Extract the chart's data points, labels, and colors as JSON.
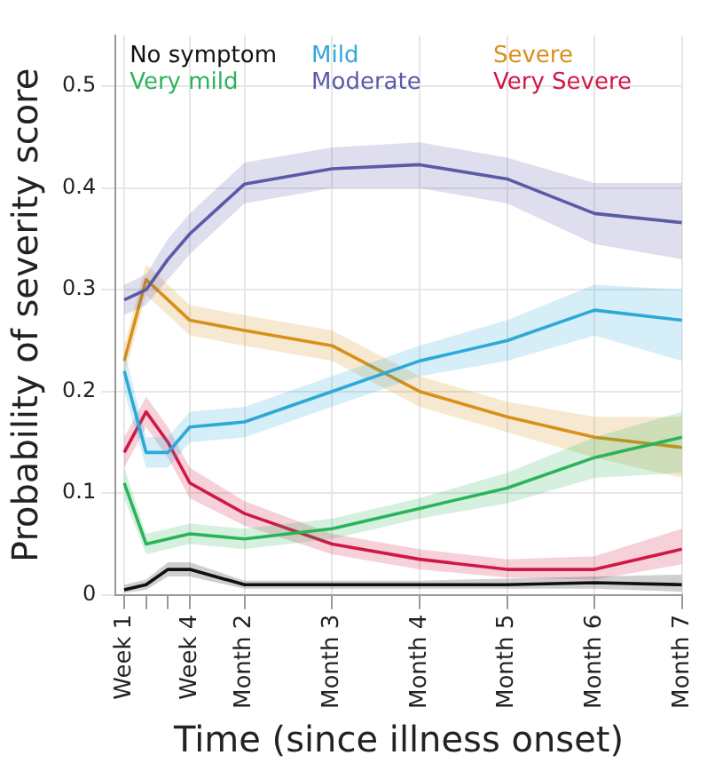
{
  "chart_data": {
    "type": "line",
    "xlabel": "Time (since illness onset)",
    "ylabel": "Probability of severity score",
    "categories": [
      "Week 1",
      null,
      null,
      "Week 4",
      "Month 2",
      "Month 3",
      "Month 4",
      "Month 5",
      "Month 6",
      "Month 7"
    ],
    "ylim": [
      0,
      0.55
    ],
    "yticks": [
      0,
      0.1,
      0.2,
      0.3,
      0.4,
      0.5
    ],
    "grid": true,
    "legend": "top",
    "marker": "none",
    "line_style": "solid",
    "series": [
      {
        "name": "No symptom",
        "color": "#111111",
        "values": [
          0.005,
          0.01,
          0.025,
          0.025,
          0.01,
          0.01,
          0.01,
          0.01,
          0.012,
          0.01
        ],
        "lower": [
          0.002,
          0.005,
          0.018,
          0.018,
          0.006,
          0.006,
          0.006,
          0.006,
          0.006,
          0.003
        ],
        "upper": [
          0.01,
          0.015,
          0.032,
          0.032,
          0.014,
          0.014,
          0.014,
          0.016,
          0.018,
          0.02
        ]
      },
      {
        "name": "Very mild",
        "color": "#2bb35a",
        "values": [
          0.11,
          0.05,
          0.055,
          0.06,
          0.055,
          0.065,
          0.085,
          0.105,
          0.135,
          0.155
        ],
        "lower": [
          0.095,
          0.04,
          0.045,
          0.05,
          0.045,
          0.055,
          0.075,
          0.09,
          0.115,
          0.12
        ],
        "upper": [
          0.125,
          0.06,
          0.065,
          0.07,
          0.065,
          0.075,
          0.095,
          0.12,
          0.155,
          0.18
        ]
      },
      {
        "name": "Mild",
        "color": "#2ea8d8",
        "values": [
          0.22,
          0.14,
          0.14,
          0.165,
          0.17,
          0.2,
          0.23,
          0.25,
          0.28,
          0.27
        ],
        "lower": [
          0.2,
          0.125,
          0.125,
          0.15,
          0.155,
          0.185,
          0.215,
          0.23,
          0.255,
          0.23
        ],
        "upper": [
          0.24,
          0.155,
          0.155,
          0.18,
          0.185,
          0.215,
          0.245,
          0.27,
          0.305,
          0.3
        ]
      },
      {
        "name": "Moderate",
        "color": "#5a5aa8",
        "values": [
          0.29,
          0.3,
          0.33,
          0.355,
          0.404,
          0.419,
          0.423,
          0.409,
          0.375,
          0.366
        ],
        "lower": [
          0.275,
          0.285,
          0.31,
          0.335,
          0.385,
          0.4,
          0.4,
          0.385,
          0.345,
          0.33
        ],
        "upper": [
          0.305,
          0.315,
          0.35,
          0.375,
          0.425,
          0.44,
          0.445,
          0.43,
          0.405,
          0.405
        ]
      },
      {
        "name": "Severe",
        "color": "#d9901a",
        "values": [
          0.23,
          0.31,
          0.29,
          0.27,
          0.26,
          0.245,
          0.2,
          0.175,
          0.155,
          0.145
        ],
        "lower": [
          0.215,
          0.295,
          0.275,
          0.255,
          0.245,
          0.23,
          0.185,
          0.16,
          0.135,
          0.115
        ],
        "upper": [
          0.245,
          0.325,
          0.305,
          0.285,
          0.275,
          0.26,
          0.215,
          0.19,
          0.175,
          0.175
        ]
      },
      {
        "name": "Very Severe",
        "color": "#d01848",
        "values": [
          0.14,
          0.18,
          0.15,
          0.11,
          0.08,
          0.05,
          0.035,
          0.025,
          0.025,
          0.045
        ],
        "lower": [
          0.125,
          0.165,
          0.135,
          0.095,
          0.068,
          0.04,
          0.025,
          0.017,
          0.015,
          0.03
        ],
        "upper": [
          0.155,
          0.195,
          0.165,
          0.125,
          0.092,
          0.06,
          0.045,
          0.035,
          0.038,
          0.065
        ]
      }
    ]
  }
}
